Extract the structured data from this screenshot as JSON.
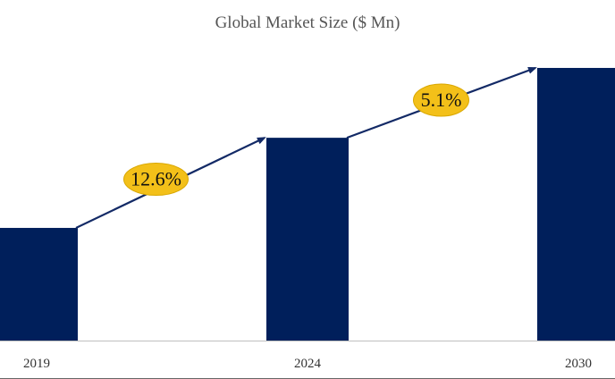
{
  "colors": {
    "bar": "#001f5b",
    "arrow": "#132a66",
    "badge_fill": "#f3c019",
    "badge_stroke": "#d9a700",
    "axis": "#bfbfbf"
  },
  "chart_data": {
    "type": "bar",
    "title": "Global Market Size ($ Mn)",
    "xlabel": "",
    "ylabel": "",
    "categories": [
      "2019",
      "2024",
      "2030"
    ],
    "values": [
      100,
      180,
      242
    ],
    "ylim": [
      0,
      265
    ],
    "grid": false,
    "legend": "none",
    "annotations": [
      {
        "type": "cagr-arrow",
        "from": "2019",
        "to": "2024",
        "label": "12.6%"
      },
      {
        "type": "cagr-arrow",
        "from": "2024",
        "to": "2030",
        "label": "5.1%"
      }
    ]
  }
}
